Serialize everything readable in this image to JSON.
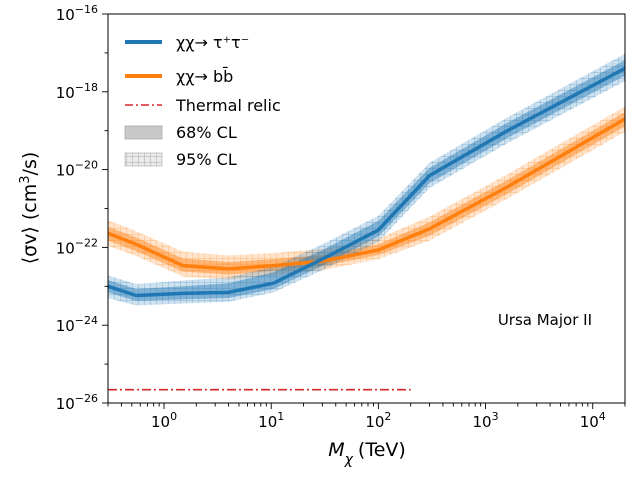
{
  "chart_data": {
    "type": "line",
    "title": "",
    "annotation": "Ursa Major II",
    "xlabel_symbol": "M",
    "xlabel_sub": "χ",
    "xlabel_unit": "(TeV)",
    "ylabel_left": "⟨σv⟩ (cm",
    "ylabel_sup": "3",
    "ylabel_right": "/s)",
    "x_scale": "log",
    "y_scale": "log",
    "xlim": [
      0.3,
      20000
    ],
    "ylim": [
      1e-26,
      1e-16
    ],
    "x_ticks": [
      {
        "value": 1,
        "base": "10",
        "exp": "0"
      },
      {
        "value": 10,
        "base": "10",
        "exp": "1"
      },
      {
        "value": 100,
        "base": "10",
        "exp": "2"
      },
      {
        "value": 1000,
        "base": "10",
        "exp": "3"
      },
      {
        "value": 10000,
        "base": "10",
        "exp": "4"
      }
    ],
    "y_ticks": [
      {
        "value": 1e-26,
        "base": "10",
        "exp": "−26"
      },
      {
        "value": 1e-24,
        "base": "10",
        "exp": "−24"
      },
      {
        "value": 1e-22,
        "base": "10",
        "exp": "−22"
      },
      {
        "value": 1e-20,
        "base": "10",
        "exp": "−20"
      },
      {
        "value": 1e-18,
        "base": "10",
        "exp": "−18"
      },
      {
        "value": 1e-16,
        "base": "10",
        "exp": "−16"
      }
    ],
    "legend": {
      "position": "upper-left",
      "entries": [
        {
          "key": "tau",
          "label": "χχ→ τ⁺τ⁻"
        },
        {
          "key": "bb",
          "label": "χχ→ bb̄"
        },
        {
          "key": "thermal",
          "label": "Thermal relic"
        },
        {
          "key": "cl68",
          "label": "68% CL"
        },
        {
          "key": "cl95",
          "label": "95% CL"
        }
      ]
    },
    "series": [
      {
        "name": "χχ→ τ⁺τ⁻",
        "color": "#1f77b4",
        "x": [
          0.3,
          0.55,
          1.5,
          4.0,
          10.5,
          30,
          100,
          300,
          1600,
          20000
        ],
        "y": [
          1e-23,
          5.8e-24,
          6.6e-24,
          7e-24,
          1.2e-23,
          5e-23,
          2.8e-22,
          7e-21,
          1e-19,
          4e-18
        ],
        "cl68_lower": [
          7e-24,
          4.2e-24,
          4.6e-24,
          5e-24,
          8.5e-24,
          3.4e-23,
          1.9e-22,
          4.5e-21,
          6.5e-20,
          2.6e-18
        ],
        "cl68_upper": [
          1.45e-23,
          8.5e-24,
          1e-23,
          1.2e-23,
          2.3e-23,
          8.5e-23,
          4.8e-22,
          1.1e-20,
          1.6e-19,
          6.5e-18
        ],
        "cl95_lower": [
          5e-24,
          3.2e-24,
          3.6e-24,
          4e-24,
          7e-24,
          2.6e-23,
          1.4e-22,
          3.4e-21,
          4.8e-20,
          1.9e-18
        ],
        "cl95_upper": [
          1.9e-23,
          1.15e-23,
          1.4e-23,
          1.7e-23,
          3.2e-23,
          1.2e-22,
          6.5e-22,
          1.5e-20,
          2.2e-19,
          9.5e-18
        ]
      },
      {
        "name": "χχ→ bb̄",
        "color": "#ff7f0e",
        "x": [
          0.3,
          0.55,
          1.5,
          4.0,
          10.5,
          30,
          100,
          300,
          1600,
          20000
        ],
        "y": [
          2.3e-22,
          1.2e-22,
          3.4e-23,
          2.8e-23,
          3.4e-23,
          4.4e-23,
          8.6e-23,
          3e-22,
          3.6e-21,
          2e-19
        ],
        "cl68_lower": [
          1.5e-22,
          8e-23,
          2.4e-23,
          2e-23,
          2.5e-23,
          3.3e-23,
          6.4e-23,
          2e-22,
          2.4e-21,
          1.3e-19
        ],
        "cl68_upper": [
          3.4e-22,
          1.8e-22,
          5.2e-23,
          4.2e-23,
          5e-23,
          6.4e-23,
          1.2e-22,
          4.4e-22,
          5.4e-21,
          3e-19
        ],
        "cl95_lower": [
          1.1e-22,
          6e-23,
          1.8e-23,
          1.5e-23,
          1.9e-23,
          2.6e-23,
          5e-23,
          1.5e-22,
          1.8e-21,
          9.5e-20
        ],
        "cl95_upper": [
          5e-22,
          2.6e-22,
          7.8e-23,
          6.2e-23,
          7.2e-23,
          9e-23,
          1.7e-22,
          6.2e-22,
          7.6e-21,
          4.2e-19
        ]
      }
    ],
    "thermal_relic": {
      "name": "Thermal relic",
      "color": "#d62728",
      "value": 2.2e-26,
      "x_range": [
        0.3,
        200
      ]
    }
  }
}
